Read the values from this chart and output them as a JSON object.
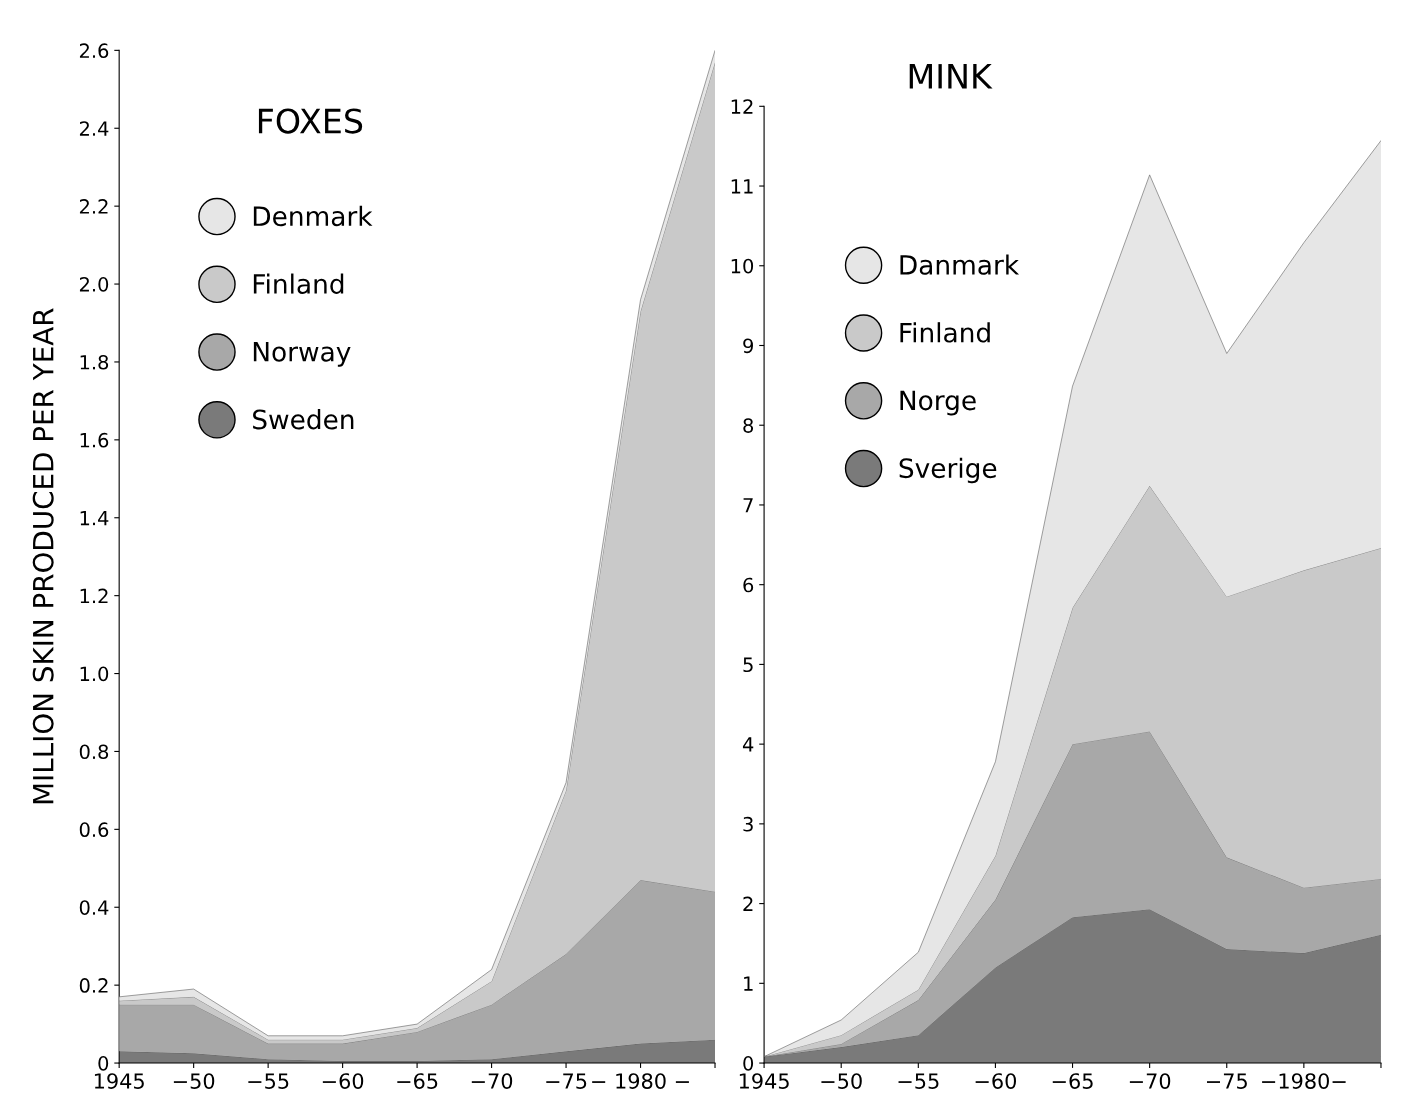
{
  "chart_data": [
    {
      "type": "area",
      "stacked": true,
      "title": "FOXES",
      "ylabel": "MILLION SKIN PRODUCED PER YEAR",
      "legend": "top left",
      "grid": false,
      "categories": [
        "1945",
        "−50",
        "−55",
        "−60",
        "−65",
        "−70",
        "−75",
        "− 1980 −",
        null
      ],
      "ylim": [
        0,
        2.6
      ],
      "yticks": [
        {
          "value": 0,
          "label": "0"
        },
        0.2,
        0.4,
        0.6,
        0.8,
        {
          "value": 1.0,
          "label": "1.0"
        },
        1.2,
        1.4,
        1.6,
        1.8,
        {
          "value": 2.0,
          "label": "2.0"
        },
        2.2,
        2.4,
        2.6
      ],
      "series": [
        {
          "name": "Sweden",
          "color": "#7a7a7a",
          "values": [
            0.03,
            0.025,
            0.01,
            0.005,
            0.005,
            0.01,
            0.03,
            0.05,
            0.06
          ]
        },
        {
          "name": "Norway",
          "color": "#a8a8a8",
          "values": [
            0.12,
            0.125,
            0.04,
            0.045,
            0.075,
            0.14,
            0.25,
            0.42,
            0.38
          ]
        },
        {
          "name": "Finland",
          "color": "#c9c9c9",
          "values": [
            0.01,
            0.02,
            0.01,
            0.01,
            0.01,
            0.06,
            0.42,
            1.46,
            2.13
          ]
        },
        {
          "name": "Denmark",
          "color": "#e6e6e6",
          "values": [
            0.01,
            0.02,
            0.01,
            0.01,
            0.01,
            0.03,
            0.02,
            0.03,
            0.03
          ]
        }
      ]
    },
    {
      "type": "area",
      "stacked": true,
      "title": "MINK",
      "legend": "top left",
      "grid": false,
      "categories": [
        "1945",
        "−50",
        "−55",
        "−60",
        "−65",
        "−70",
        "−75",
        "−1980−",
        null
      ],
      "ylim": [
        0,
        12
      ],
      "yticks": [
        0,
        1,
        2,
        3,
        4,
        5,
        6,
        7,
        8,
        9,
        10,
        11,
        12
      ],
      "series": [
        {
          "name": "Sverige",
          "color": "#7a7a7a",
          "values": [
            0.08,
            0.2,
            0.35,
            1.2,
            1.83,
            1.93,
            1.43,
            1.38,
            1.61
          ]
        },
        {
          "name": "Norge",
          "color": "#a8a8a8",
          "values": [
            0,
            0.04,
            0.44,
            0.85,
            2.17,
            2.23,
            1.15,
            0.82,
            0.7
          ]
        },
        {
          "name": "Finland",
          "color": "#c9c9c9",
          "values": [
            0,
            0.11,
            0.13,
            0.55,
            1.71,
            3.08,
            3.27,
            3.98,
            4.15
          ]
        },
        {
          "name": "Danmark",
          "color": "#e6e6e6",
          "values": [
            0,
            0.19,
            0.47,
            1.18,
            2.78,
            3.9,
            3.05,
            4.11,
            5.11
          ]
        }
      ]
    }
  ]
}
